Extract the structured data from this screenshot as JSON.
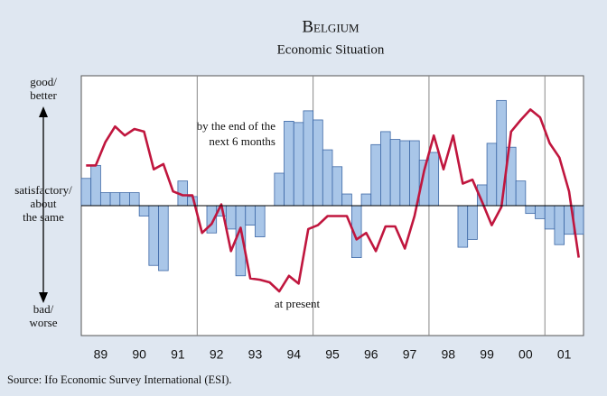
{
  "chart_data": {
    "type": "bar_line",
    "title": "Belgium",
    "subtitle": "Economic Situation",
    "y_labels": {
      "top": [
        "good/",
        "better"
      ],
      "middle": [
        "satisfactory/",
        "about",
        "the same"
      ],
      "bottom": [
        "bad/",
        "worse"
      ]
    },
    "annotations": {
      "bars": [
        "by the end of the",
        "next 6 months"
      ],
      "line": [
        "at present"
      ]
    },
    "source": "Source: Ifo Economic Survey International (ESI).",
    "categories": [
      null,
      "89",
      null,
      null,
      null,
      "90",
      null,
      null,
      null,
      "91",
      null,
      null,
      null,
      "92",
      null,
      null,
      null,
      "93",
      null,
      null,
      null,
      "94",
      null,
      null,
      null,
      "95",
      null,
      null,
      null,
      "96",
      null,
      null,
      null,
      "97",
      null,
      null,
      null,
      "98",
      null,
      null,
      null,
      "99",
      null,
      null,
      null,
      "00",
      null,
      null,
      null,
      "01",
      null,
      null
    ],
    "ylim": [
      -100,
      100
    ],
    "series": [
      {
        "kind": "bar",
        "color": "#a9c6e8",
        "edge": "#3d68a6",
        "values": [
          21,
          31,
          10,
          10,
          10,
          10,
          -8,
          -46,
          -50,
          0,
          19,
          7,
          0,
          -21,
          -8,
          -18,
          -54,
          -15,
          -24,
          0,
          25,
          65,
          64,
          73,
          66,
          43,
          30,
          9,
          -40,
          9,
          47,
          57,
          51,
          50,
          50,
          35,
          41,
          0,
          0,
          -32,
          -26,
          16,
          48,
          81,
          45,
          19,
          -6,
          -10,
          -18,
          -30,
          -22,
          -22
        ]
      },
      {
        "kind": "line",
        "color": "#c0163e",
        "values": [
          31,
          31,
          49,
          61,
          54,
          59,
          57,
          28,
          32,
          11,
          8,
          8,
          -21,
          -14,
          1,
          -35,
          -17,
          -56,
          -57,
          -59,
          -66,
          -54,
          -60,
          -18,
          -15,
          -8,
          -8,
          -8,
          -26,
          -21,
          -35,
          -16,
          -16,
          -33,
          -8,
          27,
          54,
          28,
          54,
          17,
          20,
          3,
          -15,
          -1,
          57,
          66,
          74,
          68,
          48,
          37,
          11,
          -40
        ]
      }
    ]
  }
}
